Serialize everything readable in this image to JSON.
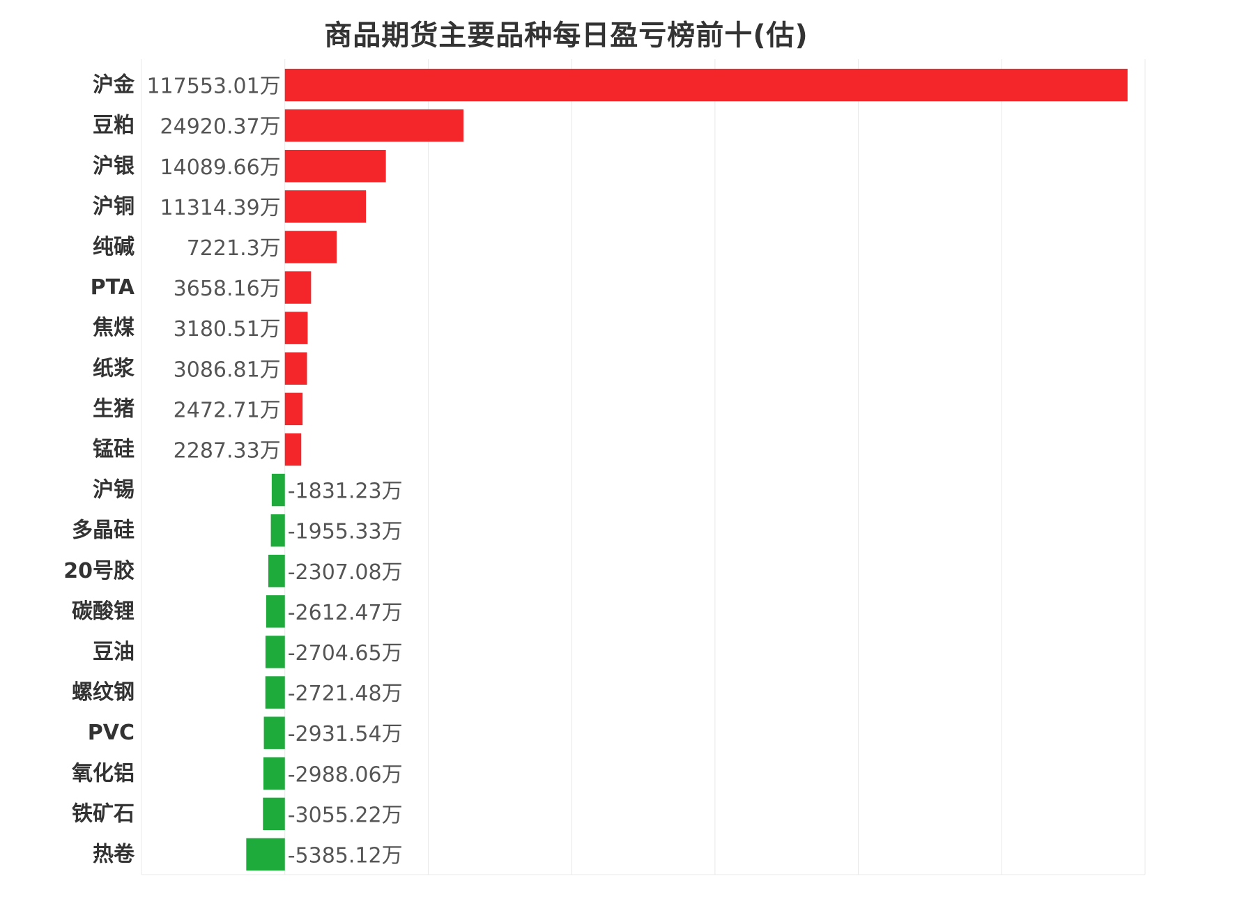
{
  "chart_data": {
    "type": "bar",
    "orientation": "horizontal",
    "title": "商品期货主要品种每日盈亏榜前十(估)",
    "xlabel": "",
    "ylabel": "",
    "unit": "万",
    "grid": true,
    "categories": [
      "沪金",
      "豆粕",
      "沪银",
      "沪铜",
      "纯碱",
      "PTA",
      "焦煤",
      "纸浆",
      "生猪",
      "锰硅",
      "沪锡",
      "多晶硅",
      "20号胶",
      "碳酸锂",
      "豆油",
      "螺纹钢",
      "PVC",
      "氧化铝",
      "铁矿石",
      "热卷"
    ],
    "values": [
      117553.01,
      24920.37,
      14089.66,
      11314.39,
      7221.3,
      3658.16,
      3180.51,
      3086.81,
      2472.71,
      2287.33,
      -1831.23,
      -1955.33,
      -2307.08,
      -2612.47,
      -2704.65,
      -2721.48,
      -2931.54,
      -2988.06,
      -3055.22,
      -5385.12
    ],
    "value_labels": [
      "117553.01万",
      "24920.37万",
      "14089.66万",
      "11314.39万",
      "7221.3万",
      "3658.16万",
      "3180.51万",
      "3086.81万",
      "2472.71万",
      "2287.33万",
      "-1831.23万",
      "-1955.33万",
      "-2307.08万",
      "-2612.47万",
      "-2704.65万",
      "-2721.48万",
      "-2931.54万",
      "-2988.06万",
      "-3055.22万",
      "-5385.12万"
    ],
    "xlim": [
      -20000,
      120000
    ],
    "colors": {
      "positive": "#f5262a",
      "negative": "#1faa3c",
      "grid": "#e8e8e8"
    }
  }
}
